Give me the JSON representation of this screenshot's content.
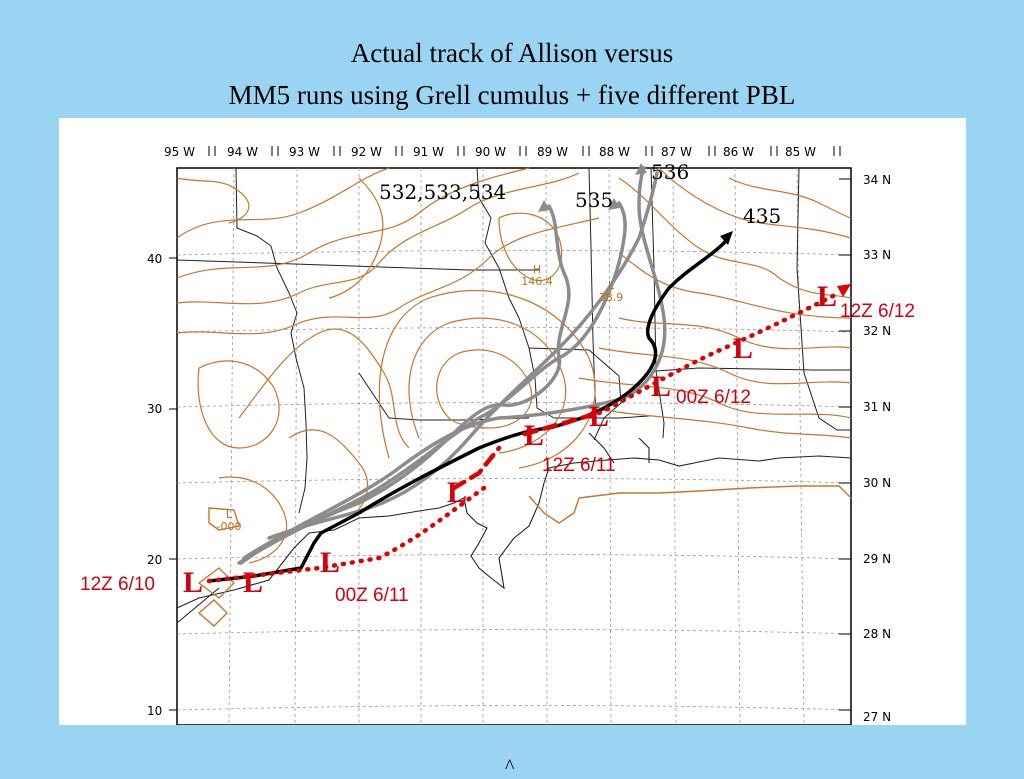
{
  "title": {
    "line1": "Actual track of Allison versus",
    "line2": "MM5 runs using Grell cumulus + five different PBL"
  },
  "map": {
    "lon_labels": [
      "95 W",
      "94 W",
      "93 W",
      "92 W",
      "91 W",
      "90 W",
      "89 W",
      "88 W",
      "87 W",
      "86 W",
      "85 W"
    ],
    "lat_labels": [
      "34 N",
      "33 N",
      "32 N",
      "31 N",
      "30 N",
      "29 N",
      "28 N",
      "27 N"
    ],
    "left_axis_labels": [
      "40",
      "30",
      "20",
      "10"
    ],
    "run_labels": {
      "a": "532,533,534",
      "b": "535",
      "c": "536",
      "d": "435"
    },
    "time_labels": {
      "z12_610": "12Z 6/10",
      "z00_611": "00Z 6/11",
      "z12_611": "12Z 6/11",
      "z00_612": "00Z 6/12",
      "z12_612": "12Z 6/12"
    },
    "low_symbol": "L",
    "pressure_markers": [
      {
        "letter": "H",
        "value": "146.4"
      },
      {
        "letter": "L",
        "value": "38.9"
      },
      {
        "letter": "L",
        "value": "-000"
      }
    ],
    "colors": {
      "observed_track": "#e00000",
      "model_track_black": "#000000",
      "model_track_gray": "#8c8c8c",
      "contours": "#c8762a",
      "background": "#99d4f3"
    }
  },
  "footnote": "^"
}
